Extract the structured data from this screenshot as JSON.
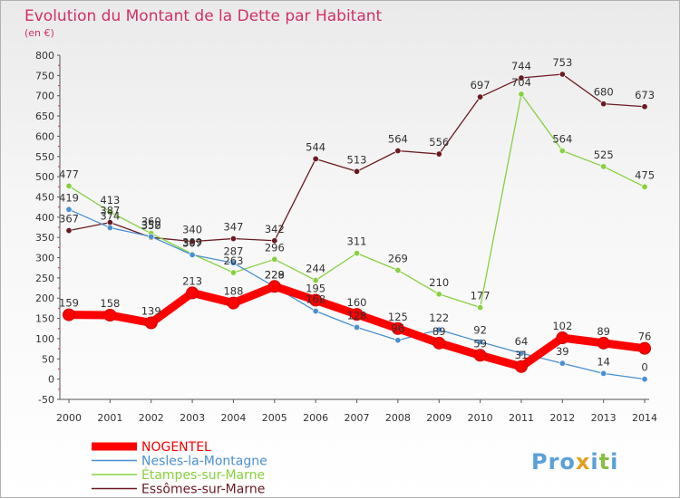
{
  "chart_data": {
    "type": "line",
    "title": "Evolution du Montant de la Dette par Habitant",
    "subtitle": "(en €)",
    "xlabel": "",
    "ylabel": "",
    "x": [
      "2000",
      "2001",
      "2002",
      "2003",
      "2004",
      "2005",
      "2006",
      "2007",
      "2008",
      "2009",
      "2010",
      "2011",
      "2012",
      "2013",
      "2014"
    ],
    "y_ticks": [
      -50,
      0,
      50,
      100,
      150,
      200,
      250,
      300,
      350,
      400,
      450,
      500,
      550,
      600,
      650,
      700,
      750,
      800
    ],
    "ylim": [
      -50,
      800
    ],
    "grid": false,
    "legend_position": "bottom-left",
    "series": [
      {
        "name": "NOGENTEL",
        "color": "#ff0000",
        "values": [
          159,
          158,
          139,
          213,
          188,
          229,
          195,
          160,
          125,
          89,
          59,
          31,
          102,
          89,
          76
        ]
      },
      {
        "name": "Nesles-la-Montagne",
        "color": "#4a90d0",
        "values": [
          419,
          374,
          352,
          307,
          287,
          228,
          168,
          128,
          96,
          122,
          92,
          64,
          39,
          14,
          0
        ]
      },
      {
        "name": "Étampes-sur-Marne",
        "color": "#88d040",
        "values": [
          477,
          413,
          360,
          309,
          263,
          296,
          244,
          311,
          269,
          210,
          177,
          704,
          564,
          525,
          475
        ]
      },
      {
        "name": "Essômes-sur-Marne",
        "color": "#6a1a20",
        "values": [
          367,
          387,
          350,
          340,
          347,
          342,
          544,
          513,
          564,
          556,
          697,
          744,
          753,
          680,
          673
        ]
      }
    ]
  },
  "watermark": "Proxiti"
}
